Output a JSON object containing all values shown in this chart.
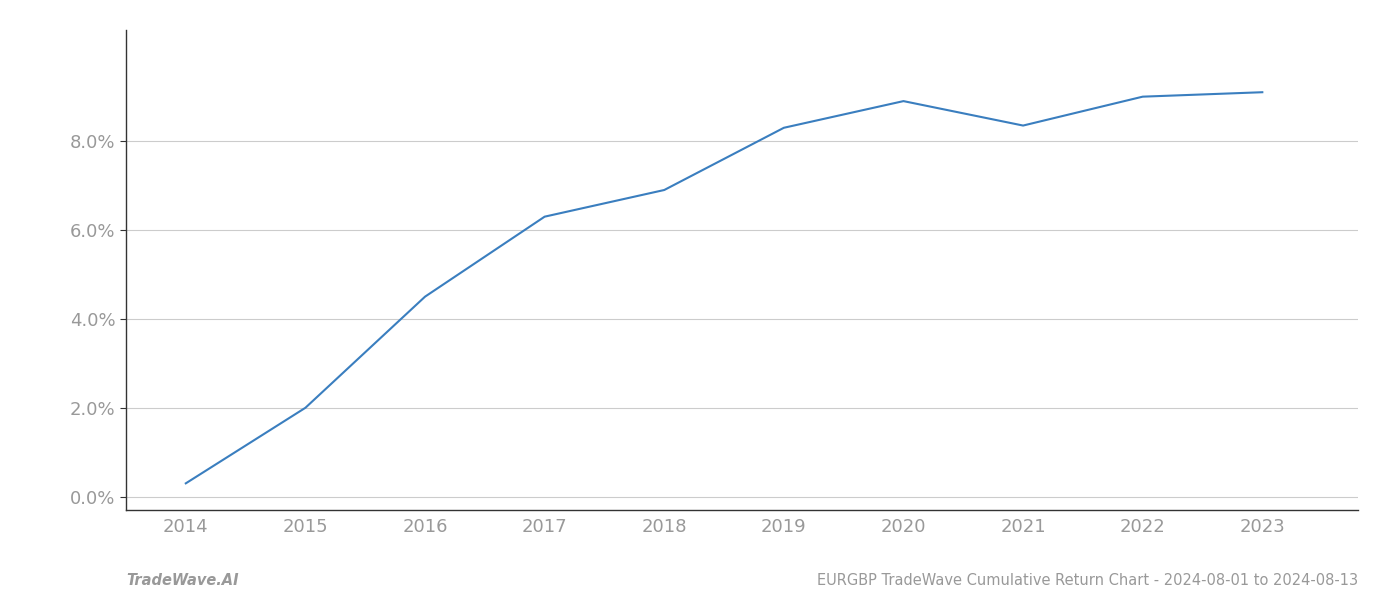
{
  "x_years": [
    2014,
    2015,
    2016,
    2017,
    2018,
    2019,
    2020,
    2021,
    2022,
    2023
  ],
  "y_values": [
    0.003,
    0.02,
    0.045,
    0.063,
    0.069,
    0.083,
    0.089,
    0.0835,
    0.09,
    0.091
  ],
  "line_color": "#3a7ebf",
  "line_width": 1.5,
  "background_color": "#ffffff",
  "grid_color": "#cccccc",
  "axis_color": "#333333",
  "tick_color": "#999999",
  "ylim": [
    -0.003,
    0.105
  ],
  "xlim": [
    2013.5,
    2023.8
  ],
  "yticks": [
    0.0,
    0.02,
    0.04,
    0.06,
    0.08
  ],
  "ytick_labels": [
    "0.0%",
    "2.0%",
    "4.0%",
    "6.0%",
    "8.0%"
  ],
  "xticks": [
    2014,
    2015,
    2016,
    2017,
    2018,
    2019,
    2020,
    2021,
    2022,
    2023
  ],
  "footer_left": "TradeWave.AI",
  "footer_right": "EURGBP TradeWave Cumulative Return Chart - 2024-08-01 to 2024-08-13",
  "footer_color": "#999999",
  "footer_fontsize": 10.5,
  "ytick_fontsize": 13,
  "xtick_fontsize": 13
}
